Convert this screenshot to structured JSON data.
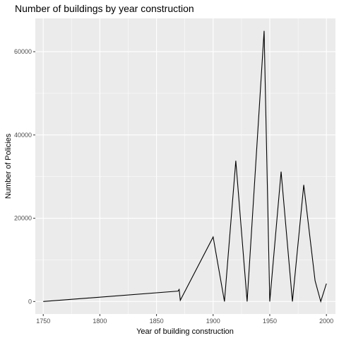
{
  "chart_data": {
    "type": "line",
    "title": "Number of buildings by year construction",
    "xlabel": "Year of building construction",
    "ylabel": "Number of Policies",
    "xlim": [
      1743,
      2008
    ],
    "ylim": [
      -3000,
      68000
    ],
    "xticks": [
      1750,
      1800,
      1850,
      1900,
      1950,
      2000
    ],
    "xtick_labels": [
      "1750",
      "1800",
      "1850",
      "1900",
      "1950",
      "2000"
    ],
    "yticks": [
      0,
      20000,
      40000,
      60000
    ],
    "ytick_labels": [
      "0",
      "20000",
      "40000",
      "60000"
    ],
    "grid": true,
    "panel_background": "#ebebeb",
    "grid_color": "#ffffff",
    "line_color": "#000000",
    "series": [
      {
        "x": [
          1750,
          1869,
          1870,
          1871,
          1900,
          1910,
          1920,
          1930,
          1945,
          1950,
          1960,
          1970,
          1980,
          1990,
          1995,
          2000
        ],
        "y": [
          0,
          2500,
          2900,
          300,
          15500,
          0,
          33800,
          0,
          65000,
          0,
          31200,
          0,
          28000,
          5000,
          0,
          4300
        ]
      }
    ]
  }
}
